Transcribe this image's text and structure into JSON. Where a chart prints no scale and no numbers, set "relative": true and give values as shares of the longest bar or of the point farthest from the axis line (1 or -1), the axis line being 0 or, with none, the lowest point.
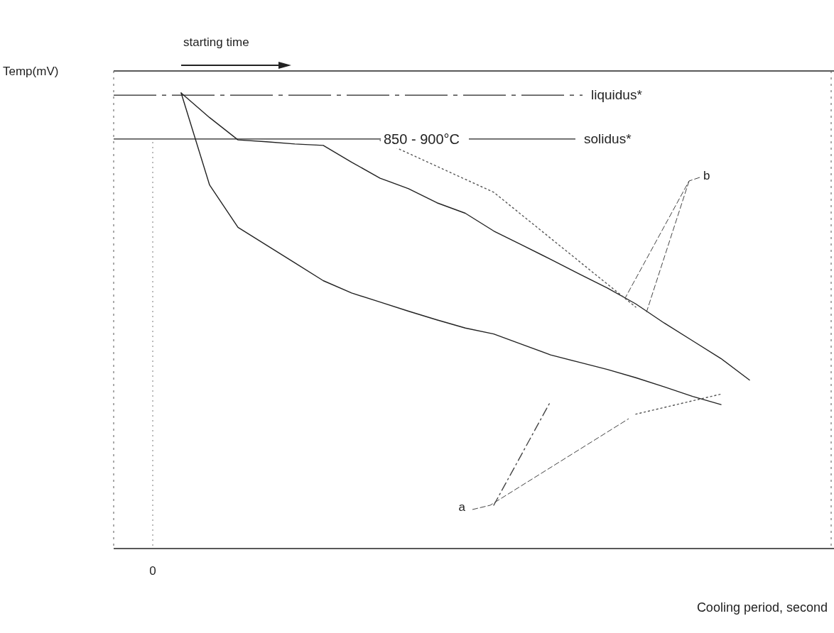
{
  "chart_data": {
    "type": "line",
    "relative": true,
    "xlabel": "Cooling period, second",
    "categories": [
      null,
      null,
      null,
      null,
      null,
      null,
      null,
      null,
      null,
      null,
      null,
      null,
      null,
      null,
      null,
      null,
      null,
      null,
      null,
      null,
      null,
      null,
      null,
      null
    ],
    "series": [
      {
        "color": "#222222",
        "values": [
          null,
          null,
          1.0,
          0.946,
          0.897,
          0.893,
          0.888,
          0.885,
          0.848,
          0.813,
          0.79,
          0.759,
          0.736,
          0.697,
          0.666,
          0.635,
          0.603,
          0.572,
          0.537,
          0.495,
          0.456,
          0.417,
          0.37,
          null
        ]
      },
      {
        "color": "#222222",
        "values": [
          null,
          null,
          1.0,
          0.798,
          0.705,
          0.666,
          0.627,
          0.588,
          0.561,
          0.541,
          0.521,
          0.502,
          0.484,
          0.471,
          0.448,
          0.425,
          0.409,
          0.393,
          0.375,
          0.355,
          0.334,
          0.316,
          null,
          null
        ]
      },
      {
        "color": "#555555",
        "line_style": "dotted",
        "values": [
          null,
          null,
          null,
          null,
          null,
          null,
          null,
          null,
          null,
          0.896,
          null,
          null,
          null,
          0.782,
          null,
          null,
          null,
          null,
          0.53,
          null,
          null,
          null,
          null,
          null
        ]
      },
      {
        "color": "#555555",
        "line_style": "dotted",
        "values": [
          null,
          null,
          null,
          null,
          null,
          null,
          null,
          null,
          null,
          null,
          null,
          null,
          null,
          null,
          null,
          null,
          null,
          null,
          0.295,
          null,
          null,
          0.339,
          null,
          null
        ]
      },
      {
        "color": "#444444",
        "line_style": "dashdot",
        "values": [
          null,
          null,
          null,
          null,
          null,
          null,
          null,
          null,
          null,
          null,
          null,
          null,
          null,
          0.095,
          null,
          0.323,
          null,
          null,
          null,
          null,
          null,
          null,
          null,
          null
        ]
      }
    ],
    "ref_lines": [
      {
        "axis": "y",
        "value": 0.995,
        "label": "liquidus*",
        "line_style": "dashed"
      },
      {
        "axis": "y",
        "value": 0.899,
        "label": "solidus*",
        "line_style": "solid"
      }
    ],
    "annotations": [
      "starting time",
      "850 - 900°C",
      "a",
      "b",
      "0",
      "Temp(mV)"
    ],
    "marker": "none",
    "line_style": "solid",
    "grid": false
  }
}
